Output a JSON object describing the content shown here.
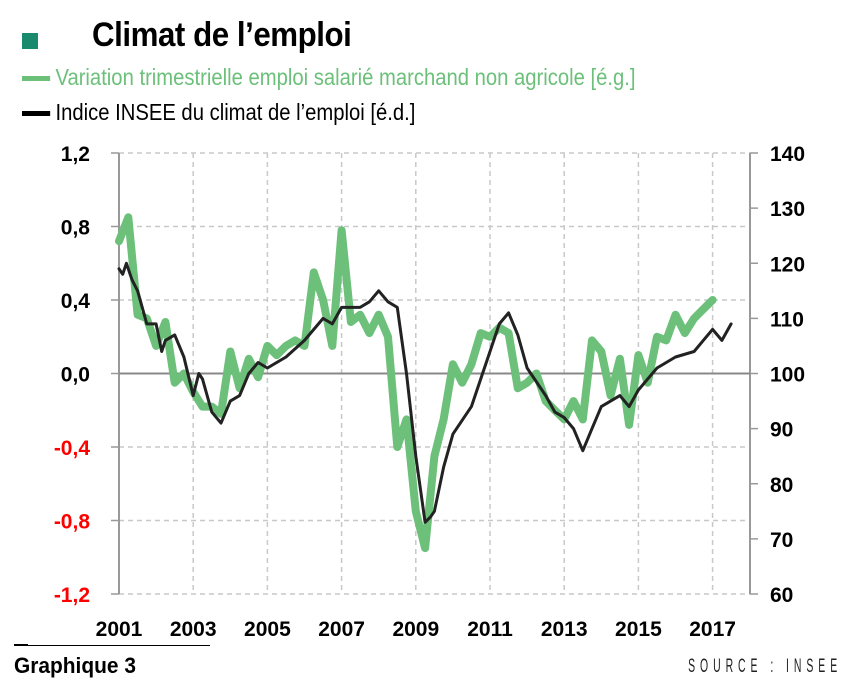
{
  "chart_data": {
    "type": "line",
    "title": "Climat de l’emploi",
    "legend": [
      "Variation trimestrielle emploi salarié marchand non agricole [é.g.]",
      "Indice INSEE du climat de l’emploi [é.d.]"
    ],
    "legend_placement": "top-left",
    "x_ticks": [
      "2001",
      "2003",
      "2005",
      "2007",
      "2009",
      "2011",
      "2013",
      "2015",
      "2017"
    ],
    "xlim": [
      2001,
      2018.1
    ],
    "y_left": {
      "ticks": [
        "1,2",
        "0,8",
        "0,4",
        "0,0",
        "-0,4",
        "-0,8",
        "-1,2"
      ],
      "tick_values": [
        1.2,
        0.8,
        0.4,
        0,
        -0.4,
        -0.8,
        -1.2
      ],
      "ylim": [
        -1.2,
        1.2
      ]
    },
    "y_right": {
      "ticks": [
        "140",
        "130",
        "120",
        "110",
        "100",
        "90",
        "80",
        "70",
        "60"
      ],
      "tick_values": [
        140,
        130,
        120,
        110,
        100,
        90,
        80,
        70,
        60
      ],
      "ylim": [
        60,
        140
      ]
    },
    "grid": true,
    "series": [
      {
        "name": "Variation trimestrielle emploi salarié marchand non agricole [é.g.]",
        "axis": "left",
        "color": "#6cc07a",
        "x": [
          2001.0,
          2001.25,
          2001.5,
          2001.75,
          2002.0,
          2002.25,
          2002.5,
          2002.75,
          2003.0,
          2003.25,
          2003.5,
          2003.75,
          2004.0,
          2004.25,
          2004.5,
          2004.75,
          2005.0,
          2005.25,
          2005.5,
          2005.75,
          2006.0,
          2006.25,
          2006.5,
          2006.75,
          2007.0,
          2007.25,
          2007.5,
          2007.75,
          2008.0,
          2008.25,
          2008.5,
          2008.75,
          2009.0,
          2009.25,
          2009.5,
          2009.75,
          2010.0,
          2010.25,
          2010.5,
          2010.75,
          2011.0,
          2011.25,
          2011.5,
          2011.75,
          2012.0,
          2012.25,
          2012.5,
          2012.75,
          2013.0,
          2013.25,
          2013.5,
          2013.75,
          2014.0,
          2014.25,
          2014.5,
          2014.75,
          2015.0,
          2015.25,
          2015.5,
          2015.75,
          2016.0,
          2016.25,
          2016.5,
          2016.75,
          2017.0
        ],
        "values": [
          0.72,
          0.85,
          0.32,
          0.3,
          0.15,
          0.28,
          -0.05,
          0.0,
          -0.1,
          -0.18,
          -0.18,
          -0.22,
          0.12,
          -0.08,
          0.08,
          -0.02,
          0.15,
          0.1,
          0.15,
          0.18,
          0.15,
          0.55,
          0.4,
          0.15,
          0.78,
          0.28,
          0.32,
          0.22,
          0.32,
          0.2,
          -0.4,
          -0.25,
          -0.75,
          -0.95,
          -0.45,
          -0.25,
          0.05,
          -0.05,
          0.05,
          0.22,
          0.2,
          0.25,
          0.22,
          -0.08,
          -0.05,
          0.0,
          -0.15,
          -0.2,
          -0.25,
          -0.15,
          -0.25,
          0.18,
          0.12,
          -0.12,
          0.08,
          -0.28,
          0.1,
          -0.05,
          0.2,
          0.18,
          0.32,
          0.22,
          0.3,
          0.35,
          0.4
        ]
      },
      {
        "name": "Indice INSEE du climat de l’emploi [é.d.]",
        "axis": "right",
        "color": "#222222",
        "x": [
          2001.0,
          2001.1,
          2001.2,
          2001.35,
          2001.5,
          2001.75,
          2002.0,
          2002.15,
          2002.25,
          2002.5,
          2002.75,
          2003.0,
          2003.15,
          2003.25,
          2003.5,
          2003.75,
          2004.0,
          2004.25,
          2004.5,
          2004.75,
          2005.0,
          2005.5,
          2006.0,
          2006.5,
          2006.75,
          2007.0,
          2007.25,
          2007.5,
          2007.75,
          2008.0,
          2008.25,
          2008.5,
          2008.75,
          2009.0,
          2009.25,
          2009.4,
          2009.5,
          2009.75,
          2010.0,
          2010.5,
          2011.0,
          2011.25,
          2011.5,
          2011.75,
          2012.0,
          2012.5,
          2012.75,
          2013.0,
          2013.25,
          2013.5,
          2013.75,
          2014.0,
          2014.5,
          2014.75,
          2015.0,
          2015.5,
          2016.0,
          2016.5,
          2016.75,
          2017.0,
          2017.25,
          2017.5
        ],
        "values": [
          119,
          118,
          120,
          117,
          115,
          109,
          109,
          104,
          106,
          107,
          103,
          96,
          100,
          99,
          93,
          91,
          95,
          96,
          100,
          102,
          101,
          103,
          106,
          110,
          109,
          112,
          112,
          112,
          113,
          115,
          113,
          112,
          100,
          85,
          73,
          74,
          75,
          83,
          89,
          94,
          104,
          109,
          111,
          107,
          101,
          96,
          93,
          92,
          90,
          86,
          90,
          94,
          96,
          94,
          97,
          101,
          103,
          104,
          106,
          108,
          106,
          109
        ]
      }
    ]
  },
  "header": {
    "title": "Climat de l’emploi",
    "legend_green": "Variation trimestrielle emploi salarié marchand non agricole [é.g.]",
    "legend_black": "Indice INSEE du climat de l’emploi [é.d.]"
  },
  "footer": {
    "graph_label": "Graphique 3",
    "source": "SOURCE : INSEE"
  },
  "colors": {
    "square": "#1a8a6e",
    "green": "#6cc07a",
    "black": "#222222",
    "negative_label": "#ff0000"
  }
}
